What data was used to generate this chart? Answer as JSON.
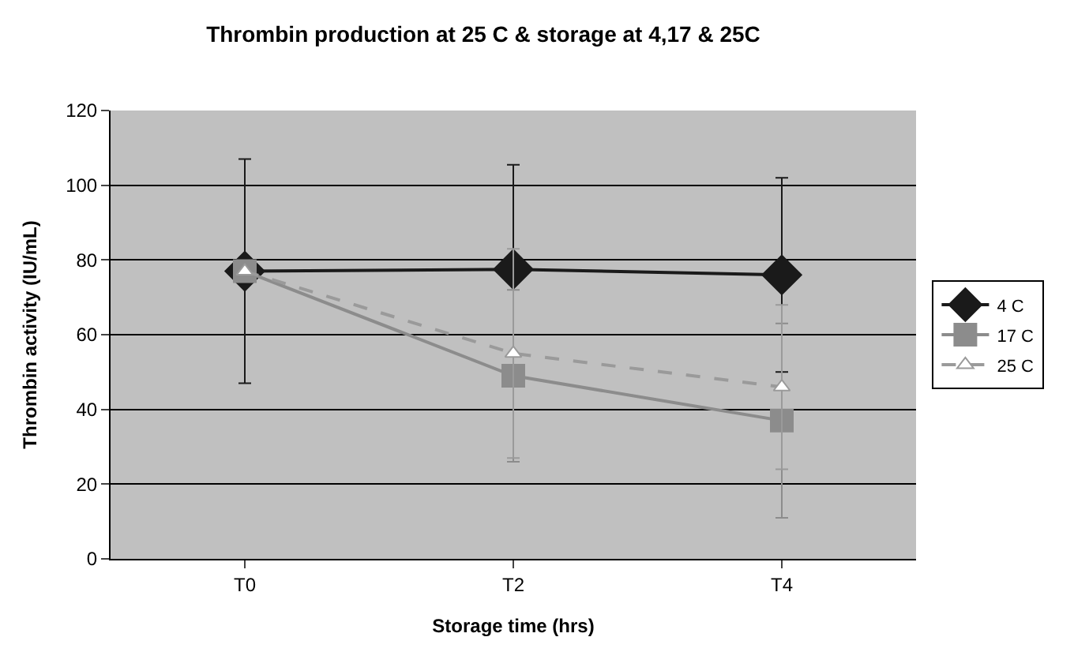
{
  "chart_data": {
    "type": "line",
    "title": "Thrombin production at 25 C & storage at 4,17 & 25C",
    "xlabel": "Storage time (hrs)",
    "ylabel": "Thrombin activity (IU/mL)",
    "categories": [
      "T0",
      "T2",
      "T4"
    ],
    "series": [
      {
        "name": "4 C",
        "color": "#1a1a1a",
        "marker": "diamond",
        "line_style": "solid",
        "values": [
          77,
          77.5,
          76
        ],
        "errors": [
          30,
          28,
          26
        ]
      },
      {
        "name": "17 C",
        "color": "#8c8c8c",
        "marker": "square",
        "line_style": "solid",
        "values": [
          77,
          49,
          37
        ],
        "errors": [
          null,
          23,
          26
        ]
      },
      {
        "name": "25 C",
        "color": "#9a9a9a",
        "marker": "triangle",
        "line_style": "dashed",
        "values": [
          77,
          55,
          46
        ],
        "errors": [
          null,
          28,
          22
        ]
      }
    ],
    "ylim": [
      0,
      120
    ],
    "yticks": [
      0,
      20,
      40,
      60,
      80,
      100,
      120
    ],
    "grid": "y",
    "legend": "right"
  }
}
